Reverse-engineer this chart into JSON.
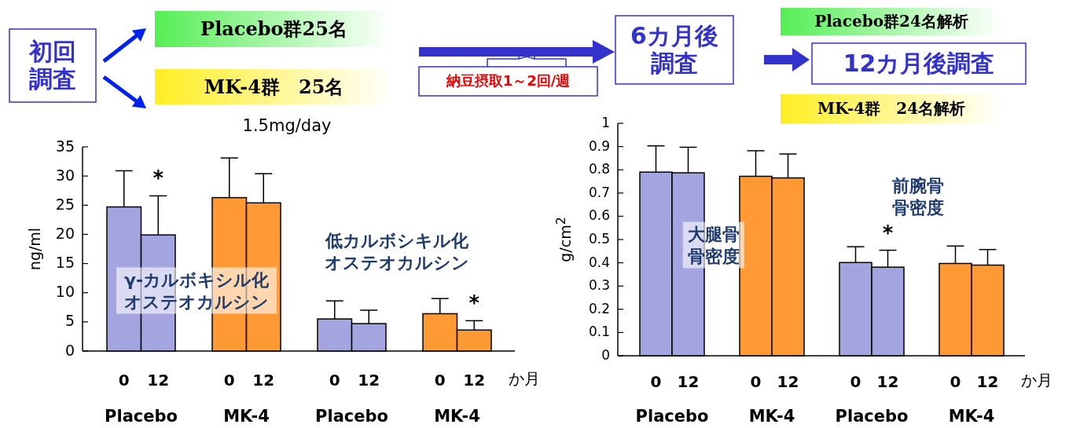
{
  "chart_data": [
    {
      "type": "other",
      "annotations": [
        "初回調査",
        "Placebo群25名",
        "MK-4群　25名",
        "1.5mg/day",
        "納豆摂取1～2回/週",
        "6カ月後調査",
        "Placebo群24名解析",
        "12カ月後調査",
        "MK-4群　24名解析"
      ]
    },
    {
      "type": "bar",
      "ylabel": "ng/ml",
      "xlabel": "か月",
      "categories": [
        "0",
        "12",
        "0",
        "12",
        "0",
        "12",
        "0",
        "12"
      ],
      "values": [
        24.7,
        19.9,
        26.3,
        25.4,
        5.5,
        4.7,
        6.4,
        3.6
      ],
      "colors": [
        "#a4a4e0",
        "#a4a4e0",
        "#ff9933",
        "#ff9933",
        "#a4a4e0",
        "#a4a4e0",
        "#ff9933",
        "#ff9933"
      ],
      "errors": [
        [
          24.7,
          30.9
        ],
        [
          19.9,
          26.6
        ],
        [
          26.3,
          33.1
        ],
        [
          25.4,
          30.4
        ],
        [
          5.5,
          8.6
        ],
        [
          4.7,
          7.0
        ],
        [
          6.4,
          9.0
        ],
        [
          3.6,
          5.2
        ]
      ],
      "ylim": [
        0,
        35
      ],
      "yticks": [
        0,
        5,
        10,
        15,
        20,
        25,
        30,
        35
      ],
      "annotations": [
        "*",
        "*",
        "γ-カルボキシル化オステオカルシン",
        "低カルボシキル化オステオカルシン",
        "Placebo",
        "MK-4",
        "Placebo",
        "MK-4"
      ]
    },
    {
      "type": "bar",
      "ylabel": "g/cm$^{2}$",
      "xlabel": "か月",
      "categories": [
        "0",
        "12",
        "0",
        "12",
        "0",
        "12",
        "0",
        "12"
      ],
      "values": [
        0.79,
        0.787,
        0.772,
        0.765,
        0.401,
        0.381,
        0.397,
        0.39
      ],
      "colors": [
        "#a4a4e0",
        "#a4a4e0",
        "#ff9933",
        "#ff9933",
        "#a4a4e0",
        "#a4a4e0",
        "#ff9933",
        "#ff9933"
      ],
      "errors": [
        [
          0.79,
          0.903
        ],
        [
          0.787,
          0.897
        ],
        [
          0.772,
          0.882
        ],
        [
          0.765,
          0.868
        ],
        [
          0.401,
          0.469
        ],
        [
          0.381,
          0.454
        ],
        [
          0.397,
          0.472
        ],
        [
          0.39,
          0.457
        ]
      ],
      "ylim": [
        0,
        1
      ],
      "yticks": [
        0,
        0.1,
        0.2,
        0.3,
        0.4,
        0.5,
        0.6,
        0.7,
        0.8,
        0.9,
        1
      ],
      "annotations": [
        "*",
        "大腿骨骨密度",
        "前腕骨骨密度",
        "Placebo",
        "MK-4",
        "Placebo",
        "MK-4"
      ]
    }
  ]
}
